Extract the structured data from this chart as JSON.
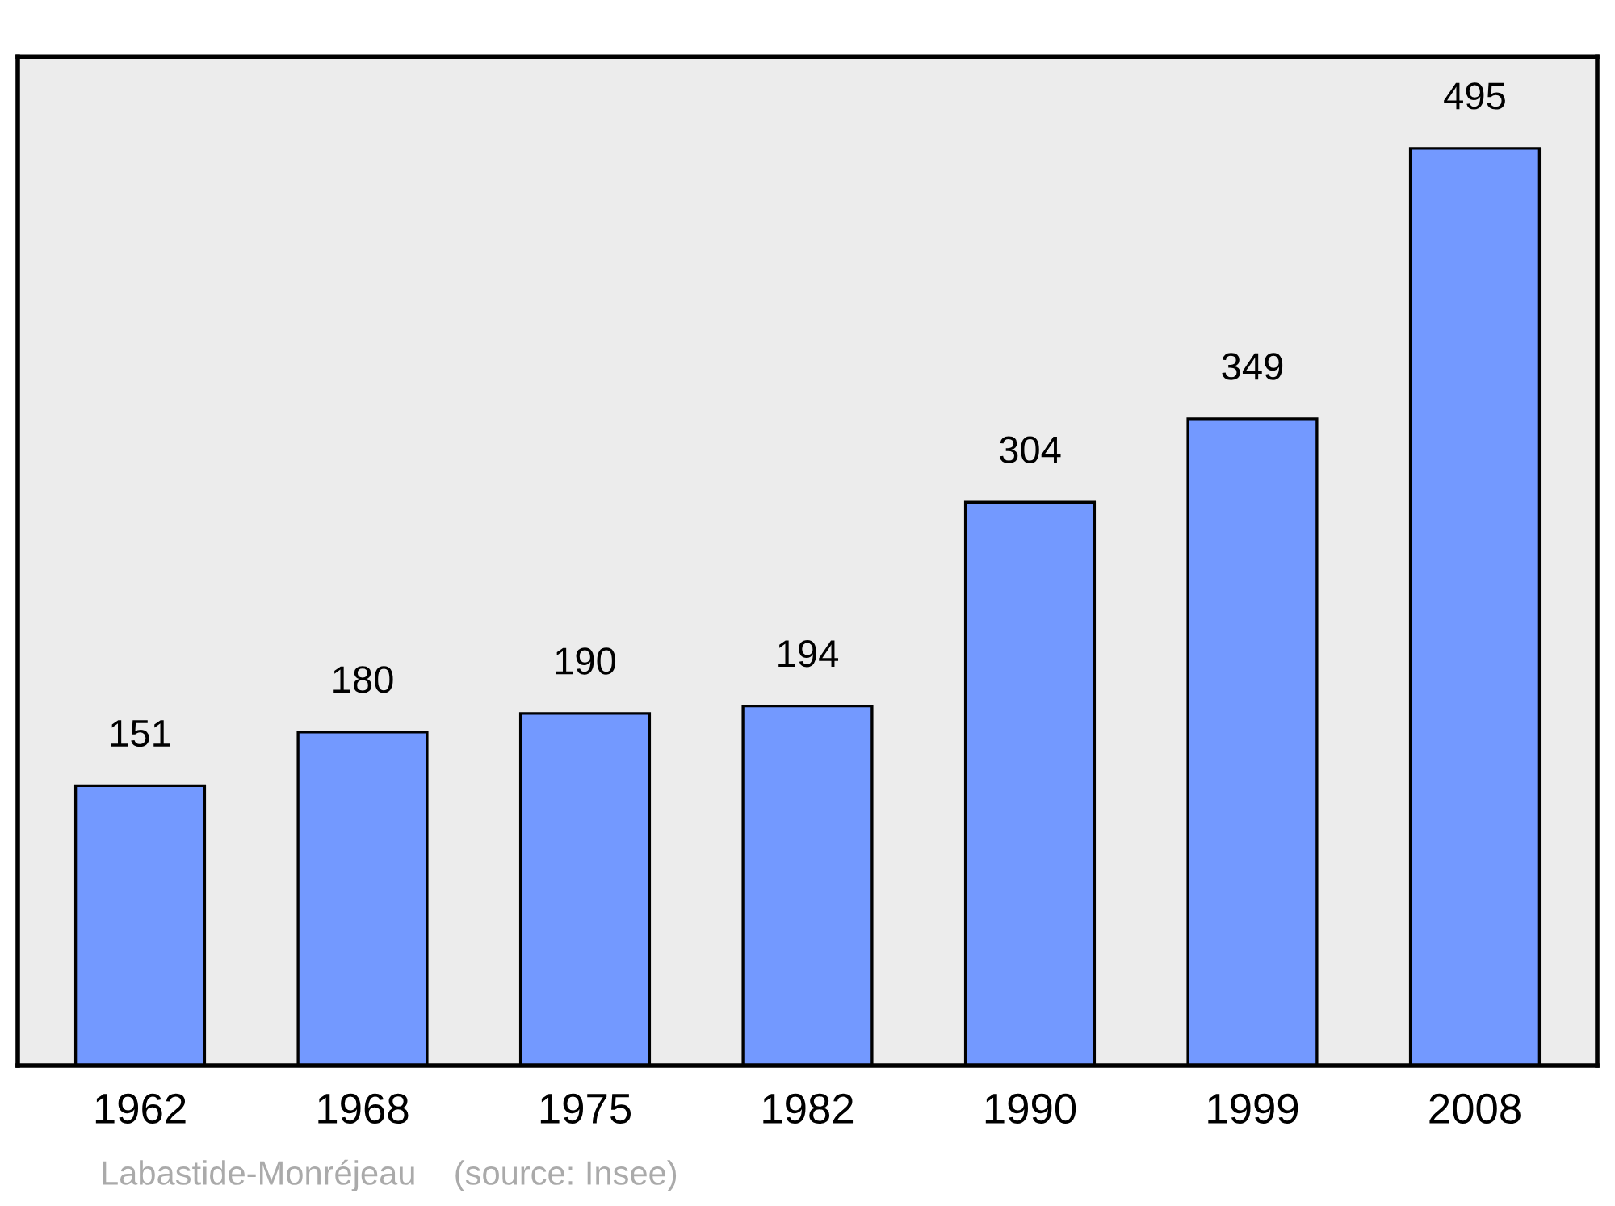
{
  "chart_data": {
    "type": "bar",
    "categories": [
      "1962",
      "1968",
      "1975",
      "1982",
      "1990",
      "1999",
      "2008"
    ],
    "values": [
      151,
      180,
      190,
      194,
      304,
      349,
      495
    ],
    "color": "#7399ff",
    "data_labels": true,
    "grid": false,
    "tick_labels": "x",
    "annotations": [
      "Labastide-Monréjeau    (source: Insee)"
    ]
  }
}
